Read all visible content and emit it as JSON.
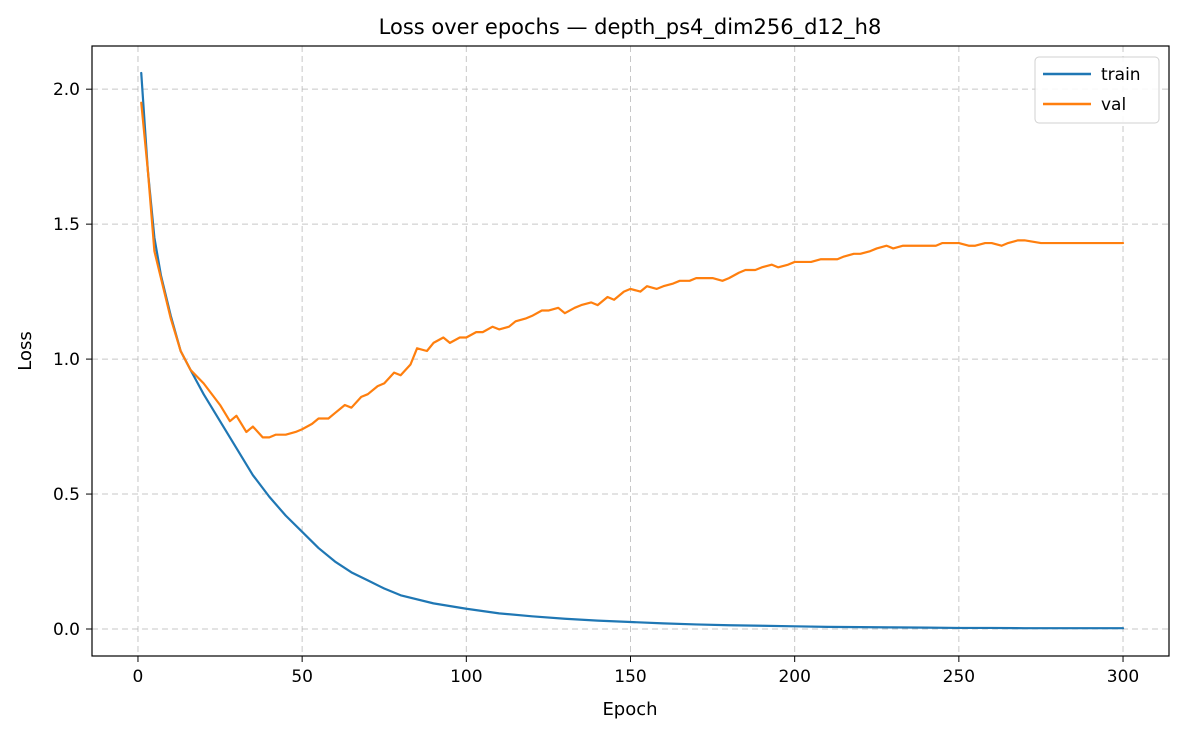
{
  "chart_data": {
    "type": "line",
    "title": "Loss over epochs — depth_ps4_dim256_d12_h8",
    "xlabel": "Epoch",
    "ylabel": "Loss",
    "xlim": [
      -14,
      314
    ],
    "ylim": [
      -0.1,
      2.16
    ],
    "xticks": [
      0,
      50,
      100,
      150,
      200,
      250,
      300
    ],
    "yticks": [
      0.0,
      0.5,
      1.0,
      1.5,
      2.0
    ],
    "xtick_labels": [
      "0",
      "50",
      "100",
      "150",
      "200",
      "250",
      "300"
    ],
    "ytick_labels": [
      "0.0",
      "0.5",
      "1.0",
      "1.5",
      "2.0"
    ],
    "grid": true,
    "legend_position": "top-right",
    "series": [
      {
        "name": "train",
        "color": "#1f77b4",
        "x": [
          1,
          3,
          5,
          7,
          10,
          13,
          16,
          20,
          25,
          30,
          35,
          40,
          45,
          50,
          55,
          60,
          65,
          70,
          75,
          80,
          90,
          100,
          110,
          120,
          130,
          140,
          150,
          160,
          170,
          180,
          190,
          200,
          210,
          220,
          230,
          240,
          250,
          260,
          270,
          280,
          290,
          300
        ],
        "y": [
          2.06,
          1.7,
          1.45,
          1.31,
          1.16,
          1.03,
          0.96,
          0.87,
          0.77,
          0.67,
          0.57,
          0.49,
          0.42,
          0.36,
          0.3,
          0.25,
          0.21,
          0.18,
          0.15,
          0.125,
          0.095,
          0.075,
          0.058,
          0.047,
          0.038,
          0.031,
          0.026,
          0.021,
          0.017,
          0.014,
          0.012,
          0.01,
          0.008,
          0.007,
          0.006,
          0.005,
          0.004,
          0.004,
          0.003,
          0.003,
          0.003,
          0.003
        ]
      },
      {
        "name": "val",
        "color": "#ff7f0e",
        "x": [
          1,
          3,
          5,
          7,
          10,
          13,
          16,
          20,
          25,
          28,
          30,
          33,
          35,
          38,
          40,
          42,
          45,
          48,
          50,
          53,
          55,
          58,
          60,
          63,
          65,
          68,
          70,
          73,
          75,
          78,
          80,
          83,
          85,
          88,
          90,
          93,
          95,
          98,
          100,
          103,
          105,
          108,
          110,
          113,
          115,
          118,
          120,
          123,
          125,
          128,
          130,
          133,
          135,
          138,
          140,
          143,
          145,
          148,
          150,
          153,
          155,
          158,
          160,
          163,
          165,
          168,
          170,
          173,
          175,
          178,
          180,
          183,
          185,
          188,
          190,
          193,
          195,
          198,
          200,
          203,
          205,
          208,
          210,
          213,
          215,
          218,
          220,
          223,
          225,
          228,
          230,
          233,
          235,
          238,
          240,
          243,
          245,
          248,
          250,
          253,
          255,
          258,
          260,
          263,
          265,
          268,
          270,
          275,
          280,
          285,
          290,
          295,
          300
        ],
        "y": [
          1.95,
          1.7,
          1.4,
          1.3,
          1.15,
          1.03,
          0.96,
          0.91,
          0.83,
          0.77,
          0.79,
          0.73,
          0.75,
          0.71,
          0.71,
          0.72,
          0.72,
          0.73,
          0.74,
          0.76,
          0.78,
          0.78,
          0.8,
          0.83,
          0.82,
          0.86,
          0.87,
          0.9,
          0.91,
          0.95,
          0.94,
          0.98,
          1.04,
          1.03,
          1.06,
          1.08,
          1.06,
          1.08,
          1.08,
          1.1,
          1.1,
          1.12,
          1.11,
          1.12,
          1.14,
          1.15,
          1.16,
          1.18,
          1.18,
          1.19,
          1.17,
          1.19,
          1.2,
          1.21,
          1.2,
          1.23,
          1.22,
          1.25,
          1.26,
          1.25,
          1.27,
          1.26,
          1.27,
          1.28,
          1.29,
          1.29,
          1.3,
          1.3,
          1.3,
          1.29,
          1.3,
          1.32,
          1.33,
          1.33,
          1.34,
          1.35,
          1.34,
          1.35,
          1.36,
          1.36,
          1.36,
          1.37,
          1.37,
          1.37,
          1.38,
          1.39,
          1.39,
          1.4,
          1.41,
          1.42,
          1.41,
          1.42,
          1.42,
          1.42,
          1.42,
          1.42,
          1.43,
          1.43,
          1.43,
          1.42,
          1.42,
          1.43,
          1.43,
          1.42,
          1.43,
          1.44,
          1.44,
          1.43,
          1.43,
          1.43,
          1.43,
          1.43,
          1.43
        ]
      }
    ]
  }
}
